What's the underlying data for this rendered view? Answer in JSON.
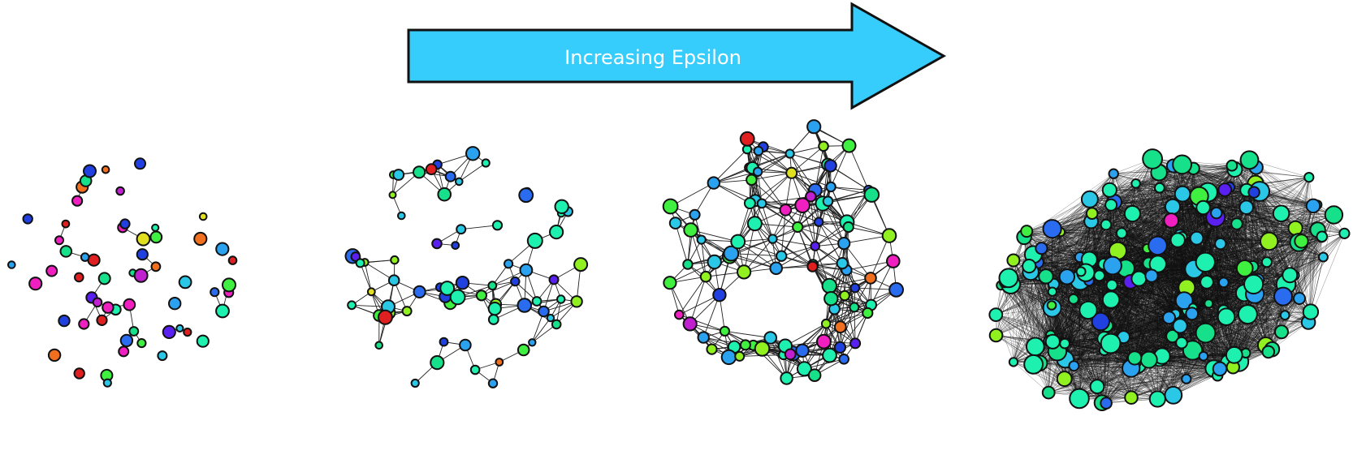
{
  "arrow": {
    "label": "Increasing Epsilon",
    "fill": "#36ccfc",
    "stroke": "#111111"
  },
  "node_palette": [
    "#1ef0b0",
    "#16e08a",
    "#2ac7e6",
    "#2aa2f0",
    "#2a6cf0",
    "#2040e0",
    "#5a20f0",
    "#c020d0",
    "#f020c0",
    "#e02020",
    "#f07020",
    "#e0e020",
    "#90f020",
    "#40f040"
  ],
  "panels": [
    {
      "name": "graph-panel-1",
      "seed": 11,
      "nodes": 58,
      "density": "sparse"
    },
    {
      "name": "graph-panel-2",
      "seed": 23,
      "nodes": 70,
      "density": "clustered"
    },
    {
      "name": "graph-panel-3",
      "seed": 37,
      "nodes": 96,
      "density": "connected"
    },
    {
      "name": "graph-panel-4",
      "seed": 53,
      "nodes": 190,
      "density": "dense"
    }
  ]
}
